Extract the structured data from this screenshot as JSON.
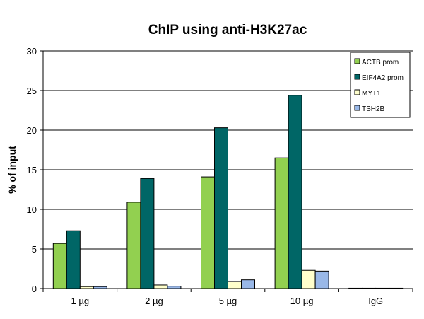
{
  "chart_data": {
    "type": "bar",
    "title": "ChIP using anti-H3K27ac",
    "xlabel": "",
    "ylabel": "% of input",
    "ylim": [
      0,
      30
    ],
    "yticks": [
      0,
      5,
      10,
      15,
      20,
      25,
      30
    ],
    "grid": true,
    "legend_position": "top-right",
    "categories": [
      "1 µg",
      "2 µg",
      "5 µg",
      "10 µg",
      "IgG"
    ],
    "series": [
      {
        "name": "ACTB prom",
        "color": "#92D050",
        "values": [
          5.7,
          10.9,
          14.1,
          16.5,
          0.05
        ]
      },
      {
        "name": "EIF4A2 prom",
        "color": "#006666",
        "values": [
          7.3,
          13.9,
          20.3,
          24.4,
          0.05
        ]
      },
      {
        "name": "MYT1",
        "color": "#FFFFCC",
        "values": [
          0.25,
          0.45,
          0.9,
          2.3,
          0.05
        ]
      },
      {
        "name": "TSH2B",
        "color": "#99B8E8",
        "values": [
          0.25,
          0.3,
          1.1,
          2.2,
          0.05
        ]
      }
    ]
  }
}
